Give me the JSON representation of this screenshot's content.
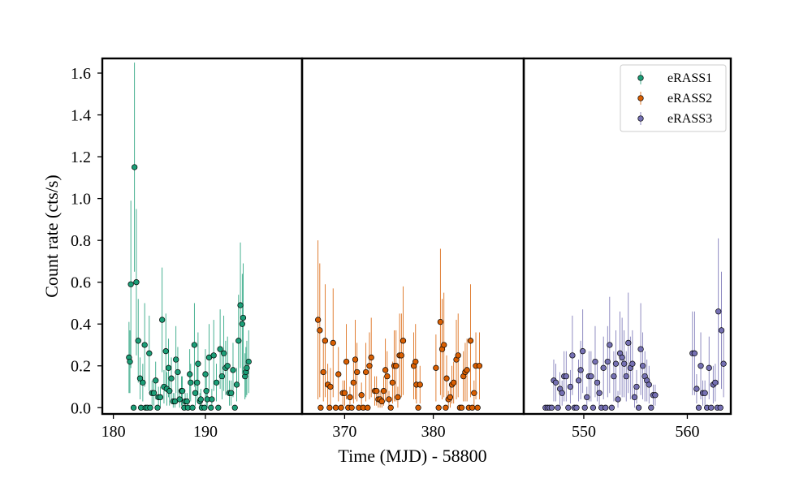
{
  "colors": {
    "eRASS1": "#1b9e77",
    "eRASS2": "#d95f02",
    "eRASS3": "#7570b3"
  },
  "chart_data": {
    "type": "scatter",
    "xlabel": "Time (MJD) - 58800",
    "ylabel": "Count rate (cts/s)",
    "ylim": [
      -0.03,
      1.67
    ],
    "yticks": [
      "0.0",
      "0.2",
      "0.4",
      "0.6",
      "0.8",
      "1.0",
      "1.2",
      "1.4",
      "1.6"
    ],
    "legend_position": "top-right",
    "panels": [
      {
        "series": "eRASS1",
        "xlim": [
          178.8,
          200.5
        ],
        "xticks": [
          "180",
          "190"
        ]
      },
      {
        "series": "eRASS2",
        "xlim": [
          365.2,
          390.2
        ],
        "xticks": [
          "370",
          "380"
        ]
      },
      {
        "series": "eRASS3",
        "xlim": [
          544.2,
          564.2
        ],
        "xticks": [
          "550",
          "560"
        ]
      }
    ],
    "series": [
      {
        "name": "eRASS1",
        "points": [
          [
            181.7,
            0.24,
            0.17
          ],
          [
            181.8,
            0.22,
            0.15
          ],
          [
            181.9,
            0.59,
            0.4
          ],
          [
            182.2,
            0.0,
            0.0
          ],
          [
            182.3,
            1.15,
            0.5
          ],
          [
            182.5,
            0.6,
            0.35
          ],
          [
            182.7,
            0.32,
            0.2
          ],
          [
            182.9,
            0.14,
            0.1
          ],
          [
            183.0,
            0.0,
            0.0
          ],
          [
            183.2,
            0.12,
            0.09
          ],
          [
            183.4,
            0.3,
            0.2
          ],
          [
            183.5,
            0.0,
            0.0
          ],
          [
            183.7,
            0.0,
            0.0
          ],
          [
            183.9,
            0.26,
            0.18
          ],
          [
            184.0,
            0.0,
            0.0
          ],
          [
            184.2,
            0.07,
            0.06
          ],
          [
            184.4,
            0.07,
            0.06
          ],
          [
            184.6,
            0.13,
            0.09
          ],
          [
            184.8,
            0.0,
            0.0
          ],
          [
            184.9,
            0.05,
            0.05
          ],
          [
            185.1,
            0.05,
            0.05
          ],
          [
            185.3,
            0.42,
            0.25
          ],
          [
            185.5,
            0.1,
            0.08
          ],
          [
            185.7,
            0.27,
            0.18
          ],
          [
            185.8,
            0.09,
            0.08
          ],
          [
            186.0,
            0.19,
            0.14
          ],
          [
            186.1,
            0.08,
            0.07
          ],
          [
            186.3,
            0.14,
            0.1
          ],
          [
            186.5,
            0.03,
            0.04
          ],
          [
            186.7,
            0.03,
            0.04
          ],
          [
            186.8,
            0.23,
            0.16
          ],
          [
            187.0,
            0.17,
            0.12
          ],
          [
            187.2,
            0.04,
            0.05
          ],
          [
            187.4,
            0.08,
            0.07
          ],
          [
            187.5,
            0.08,
            0.07
          ],
          [
            187.7,
            0.0,
            0.0
          ],
          [
            187.8,
            0.03,
            0.04
          ],
          [
            188.0,
            0.03,
            0.04
          ],
          [
            188.1,
            0.0,
            0.0
          ],
          [
            188.3,
            0.16,
            0.12
          ],
          [
            188.4,
            0.12,
            0.09
          ],
          [
            188.6,
            0.0,
            0.0
          ],
          [
            188.8,
            0.3,
            0.2
          ],
          [
            188.9,
            0.07,
            0.06
          ],
          [
            189.1,
            0.12,
            0.09
          ],
          [
            189.2,
            0.21,
            0.15
          ],
          [
            189.4,
            0.03,
            0.04
          ],
          [
            189.5,
            0.04,
            0.05
          ],
          [
            189.6,
            0.0,
            0.0
          ],
          [
            189.9,
            0.0,
            0.0
          ],
          [
            190.0,
            0.16,
            0.12
          ],
          [
            190.1,
            0.08,
            0.07
          ],
          [
            190.2,
            0.04,
            0.05
          ],
          [
            190.4,
            0.24,
            0.16
          ],
          [
            190.6,
            0.0,
            0.0
          ],
          [
            190.7,
            0.04,
            0.05
          ],
          [
            190.9,
            0.25,
            0.17
          ],
          [
            191.2,
            0.12,
            0.09
          ],
          [
            191.4,
            0.0,
            0.0
          ],
          [
            191.6,
            0.28,
            0.19
          ],
          [
            191.8,
            0.15,
            0.11
          ],
          [
            192.0,
            0.26,
            0.18
          ],
          [
            192.2,
            0.19,
            0.13
          ],
          [
            192.4,
            0.2,
            0.14
          ],
          [
            192.6,
            0.07,
            0.06
          ],
          [
            192.8,
            0.07,
            0.06
          ],
          [
            193.0,
            0.18,
            0.13
          ],
          [
            193.2,
            0.0,
            0.0
          ],
          [
            193.4,
            0.11,
            0.08
          ],
          [
            193.6,
            0.32,
            0.22
          ],
          [
            193.8,
            0.49,
            0.3
          ],
          [
            194.0,
            0.4,
            0.24
          ],
          [
            194.1,
            0.43,
            0.26
          ],
          [
            194.3,
            0.15,
            0.11
          ],
          [
            194.4,
            0.17,
            0.12
          ],
          [
            194.5,
            0.19,
            0.13
          ],
          [
            194.7,
            0.22,
            0.15
          ]
        ]
      },
      {
        "name": "eRASS2",
        "points": [
          [
            367.0,
            0.42,
            0.38
          ],
          [
            367.2,
            0.37,
            0.32
          ],
          [
            367.3,
            0.0,
            0.0
          ],
          [
            367.6,
            0.17,
            0.14
          ],
          [
            367.8,
            0.32,
            0.27
          ],
          [
            368.1,
            0.11,
            0.1
          ],
          [
            368.3,
            0.0,
            0.0
          ],
          [
            368.4,
            0.1,
            0.09
          ],
          [
            368.7,
            0.31,
            0.26
          ],
          [
            369.0,
            0.0,
            0.0
          ],
          [
            369.3,
            0.16,
            0.13
          ],
          [
            369.6,
            0.0,
            0.0
          ],
          [
            369.8,
            0.07,
            0.06
          ],
          [
            370.0,
            0.07,
            0.06
          ],
          [
            370.2,
            0.22,
            0.18
          ],
          [
            370.4,
            0.0,
            0.0
          ],
          [
            370.6,
            0.05,
            0.05
          ],
          [
            370.8,
            0.0,
            0.0
          ],
          [
            371.0,
            0.12,
            0.1
          ],
          [
            371.2,
            0.23,
            0.19
          ],
          [
            371.4,
            0.17,
            0.14
          ],
          [
            371.6,
            0.0,
            0.0
          ],
          [
            371.9,
            0.06,
            0.06
          ],
          [
            372.1,
            0.0,
            0.0
          ],
          [
            372.4,
            0.17,
            0.14
          ],
          [
            372.6,
            0.0,
            0.0
          ],
          [
            372.8,
            0.2,
            0.16
          ],
          [
            373.0,
            0.24,
            0.19
          ],
          [
            373.4,
            0.08,
            0.07
          ],
          [
            373.6,
            0.08,
            0.07
          ],
          [
            373.8,
            0.04,
            0.04
          ],
          [
            374.0,
            0.04,
            0.04
          ],
          [
            374.2,
            0.03,
            0.04
          ],
          [
            374.4,
            0.08,
            0.07
          ],
          [
            374.6,
            0.18,
            0.15
          ],
          [
            374.8,
            0.15,
            0.12
          ],
          [
            375.0,
            0.04,
            0.04
          ],
          [
            375.2,
            0.0,
            0.0
          ],
          [
            375.4,
            0.12,
            0.1
          ],
          [
            375.6,
            0.2,
            0.17
          ],
          [
            375.8,
            0.2,
            0.17
          ],
          [
            376.0,
            0.05,
            0.05
          ],
          [
            376.2,
            0.25,
            0.2
          ],
          [
            376.4,
            0.25,
            0.2
          ],
          [
            376.6,
            0.32,
            0.26
          ],
          [
            377.8,
            0.2,
            0.16
          ],
          [
            378.0,
            0.22,
            0.18
          ],
          [
            378.1,
            0.11,
            0.09
          ],
          [
            378.3,
            0.0,
            0.0
          ],
          [
            378.5,
            0.11,
            0.09
          ],
          [
            380.3,
            0.19,
            0.16
          ],
          [
            380.6,
            0.0,
            0.0
          ],
          [
            380.8,
            0.41,
            0.35
          ],
          [
            381.0,
            0.28,
            0.24
          ],
          [
            381.2,
            0.3,
            0.25
          ],
          [
            381.4,
            0.0,
            0.0
          ],
          [
            381.5,
            0.14,
            0.11
          ],
          [
            381.7,
            0.04,
            0.04
          ],
          [
            381.9,
            0.05,
            0.05
          ],
          [
            382.1,
            0.11,
            0.09
          ],
          [
            382.3,
            0.12,
            0.1
          ],
          [
            382.6,
            0.23,
            0.19
          ],
          [
            382.8,
            0.25,
            0.2
          ],
          [
            383.0,
            0.0,
            0.0
          ],
          [
            383.2,
            0.0,
            0.0
          ],
          [
            383.4,
            0.15,
            0.12
          ],
          [
            383.6,
            0.17,
            0.14
          ],
          [
            383.8,
            0.18,
            0.15
          ],
          [
            384.0,
            0.0,
            0.0
          ],
          [
            384.2,
            0.32,
            0.27
          ],
          [
            384.4,
            0.0,
            0.0
          ],
          [
            384.6,
            0.07,
            0.06
          ],
          [
            384.8,
            0.2,
            0.16
          ],
          [
            385.0,
            0.0,
            0.0
          ],
          [
            385.2,
            0.2,
            0.16
          ]
        ]
      },
      {
        "name": "eRASS3",
        "points": [
          [
            546.3,
            0.0,
            0.0
          ],
          [
            546.5,
            0.0,
            0.0
          ],
          [
            546.7,
            0.0,
            0.0
          ],
          [
            546.9,
            0.0,
            0.0
          ],
          [
            547.1,
            0.13,
            0.1
          ],
          [
            547.3,
            0.12,
            0.09
          ],
          [
            547.5,
            0.0,
            0.0
          ],
          [
            547.7,
            0.09,
            0.08
          ],
          [
            547.9,
            0.07,
            0.06
          ],
          [
            548.1,
            0.15,
            0.12
          ],
          [
            548.3,
            0.15,
            0.12
          ],
          [
            548.5,
            0.0,
            0.0
          ],
          [
            548.7,
            0.1,
            0.08
          ],
          [
            548.9,
            0.25,
            0.19
          ],
          [
            549.1,
            0.0,
            0.0
          ],
          [
            549.3,
            0.0,
            0.0
          ],
          [
            549.5,
            0.13,
            0.1
          ],
          [
            549.7,
            0.18,
            0.14
          ],
          [
            549.9,
            0.27,
            0.2
          ],
          [
            550.1,
            0.0,
            0.0
          ],
          [
            550.3,
            0.05,
            0.05
          ],
          [
            550.5,
            0.15,
            0.12
          ],
          [
            550.7,
            0.15,
            0.12
          ],
          [
            550.9,
            0.0,
            0.0
          ],
          [
            551.1,
            0.22,
            0.17
          ],
          [
            551.3,
            0.12,
            0.09
          ],
          [
            551.5,
            0.07,
            0.06
          ],
          [
            551.7,
            0.0,
            0.0
          ],
          [
            551.9,
            0.19,
            0.15
          ],
          [
            552.1,
            0.0,
            0.0
          ],
          [
            552.3,
            0.22,
            0.17
          ],
          [
            552.5,
            0.3,
            0.23
          ],
          [
            552.7,
            0.0,
            0.0
          ],
          [
            552.9,
            0.15,
            0.12
          ],
          [
            553.1,
            0.21,
            0.16
          ],
          [
            553.3,
            0.04,
            0.04
          ],
          [
            553.5,
            0.26,
            0.2
          ],
          [
            553.7,
            0.24,
            0.19
          ],
          [
            553.9,
            0.21,
            0.16
          ],
          [
            554.1,
            0.15,
            0.12
          ],
          [
            554.3,
            0.31,
            0.24
          ],
          [
            554.5,
            0.19,
            0.15
          ],
          [
            554.7,
            0.21,
            0.16
          ],
          [
            554.9,
            0.05,
            0.05
          ],
          [
            555.1,
            0.1,
            0.08
          ],
          [
            555.3,
            0.0,
            0.0
          ],
          [
            555.5,
            0.28,
            0.22
          ],
          [
            555.7,
            0.2,
            0.16
          ],
          [
            555.9,
            0.15,
            0.12
          ],
          [
            556.1,
            0.13,
            0.1
          ],
          [
            556.3,
            0.11,
            0.09
          ],
          [
            556.5,
            0.0,
            0.0
          ],
          [
            556.7,
            0.06,
            0.05
          ],
          [
            556.9,
            0.06,
            0.05
          ],
          [
            560.5,
            0.26,
            0.2
          ],
          [
            560.7,
            0.26,
            0.2
          ],
          [
            560.9,
            0.09,
            0.07
          ],
          [
            561.1,
            0.0,
            0.0
          ],
          [
            561.3,
            0.2,
            0.16
          ],
          [
            561.5,
            0.07,
            0.06
          ],
          [
            561.7,
            0.07,
            0.06
          ],
          [
            561.9,
            0.0,
            0.0
          ],
          [
            562.1,
            0.19,
            0.15
          ],
          [
            562.3,
            0.0,
            0.0
          ],
          [
            562.5,
            0.11,
            0.09
          ],
          [
            562.7,
            0.12,
            0.09
          ],
          [
            562.9,
            0.0,
            0.0
          ],
          [
            563.0,
            0.46,
            0.35
          ],
          [
            563.2,
            0.0,
            0.0
          ],
          [
            563.3,
            0.37,
            0.28
          ],
          [
            563.5,
            0.21,
            0.16
          ]
        ]
      }
    ]
  }
}
